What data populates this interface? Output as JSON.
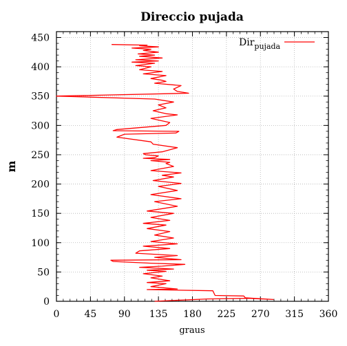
{
  "chart_data": {
    "type": "line",
    "title": "Direccio pujada",
    "xlabel": "graus",
    "ylabel": "m",
    "xlim": [
      0,
      360
    ],
    "ylim": [
      0,
      460
    ],
    "xticks": [
      "0",
      "45",
      "90",
      "135",
      "180",
      "225",
      "270",
      "315",
      "360"
    ],
    "yticks": [
      "0",
      "50",
      "100",
      "150",
      "200",
      "250",
      "300",
      "350",
      "400",
      "450"
    ],
    "xtick_values": [
      0,
      45,
      90,
      135,
      180,
      225,
      270,
      315,
      360
    ],
    "ytick_values": [
      0,
      50,
      100,
      150,
      200,
      250,
      300,
      350,
      400,
      450
    ],
    "grid": true,
    "legend_position": "top-right",
    "series": [
      {
        "name": "Dir",
        "name_sub": "pujada",
        "color": "#ff0000",
        "x": [
          130,
          200,
          255,
          287,
          250,
          248,
          210,
          207,
          120,
          160,
          125,
          145,
          120,
          150,
          125,
          140,
          115,
          145,
          120,
          155,
          110,
          140,
          170,
          125,
          75,
          72,
          165,
          130,
          160,
          105,
          110,
          150,
          115,
          160,
          125,
          155,
          130,
          150,
          120,
          145,
          115,
          150,
          125,
          155,
          120,
          160,
          130,
          165,
          125,
          160,
          135,
          165,
          128,
          155,
          140,
          165,
          125,
          155,
          145,
          150,
          125,
          150,
          115,
          130,
          135,
          118,
          115,
          140,
          160,
          128,
          125,
          80,
          90,
          158,
          162,
          75,
          80,
          145,
          150,
          125,
          160,
          145,
          128,
          145,
          135,
          155,
          130,
          0,
          175,
          160,
          155,
          165,
          130,
          145,
          140,
          125,
          145,
          115,
          140,
          110,
          125,
          105,
          130,
          100,
          135,
          105,
          140,
          110,
          130,
          108,
          135,
          115,
          125,
          100,
          135,
          110,
          120,
          73
        ],
        "y": [
          0,
          4,
          5,
          3,
          6,
          9,
          10,
          18,
          20,
          21,
          25,
          30,
          32,
          35,
          40,
          43,
          47,
          51,
          53,
          55,
          58,
          60,
          63,
          65,
          68,
          70,
          71,
          75,
          78,
          82,
          86,
          90,
          94,
          98,
          102,
          108,
          113,
          119,
          124,
          130,
          133,
          138,
          143,
          150,
          154,
          162,
          170,
          175,
          182,
          189,
          196,
          201,
          206,
          212,
          215,
          219,
          223,
          230,
          235,
          237,
          240,
          242,
          244,
          245,
          248,
          250,
          252,
          255,
          262,
          268,
          272,
          280,
          285,
          287,
          290,
          291,
          293,
          300,
          305,
          312,
          318,
          320,
          325,
          330,
          335,
          340,
          345,
          350,
          355,
          358,
          362,
          368,
          372,
          375,
          377,
          380,
          385,
          388,
          392,
          395,
          400,
          402,
          406,
          408,
          410,
          412,
          415,
          418,
          420,
          422,
          425,
          428,
          430,
          432,
          434,
          436,
          437,
          438
        ]
      }
    ]
  }
}
